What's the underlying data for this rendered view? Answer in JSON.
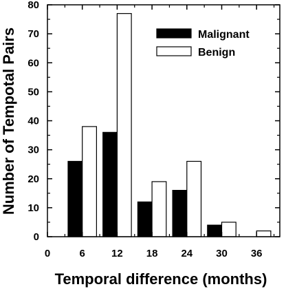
{
  "chart_data": {
    "type": "bar",
    "xlabel": "Temporal difference (months)",
    "ylabel": "Number of Tempotal Pairs",
    "xlim": [
      0,
      40
    ],
    "ylim": [
      0,
      80
    ],
    "x_ticks": [
      0,
      6,
      12,
      18,
      24,
      30,
      36
    ],
    "y_ticks": [
      0,
      10,
      20,
      30,
      40,
      50,
      60,
      70,
      80
    ],
    "categories": [
      6,
      12,
      18,
      24,
      30,
      36
    ],
    "series": [
      {
        "name": "Malignant",
        "color": "#000000",
        "values": [
          26,
          36,
          12,
          16,
          4,
          0
        ]
      },
      {
        "name": "Benign",
        "color": "#ffffff",
        "values": [
          38,
          77,
          19,
          26,
          5,
          2
        ]
      }
    ],
    "legend_position": "top-right",
    "grid": false
  }
}
